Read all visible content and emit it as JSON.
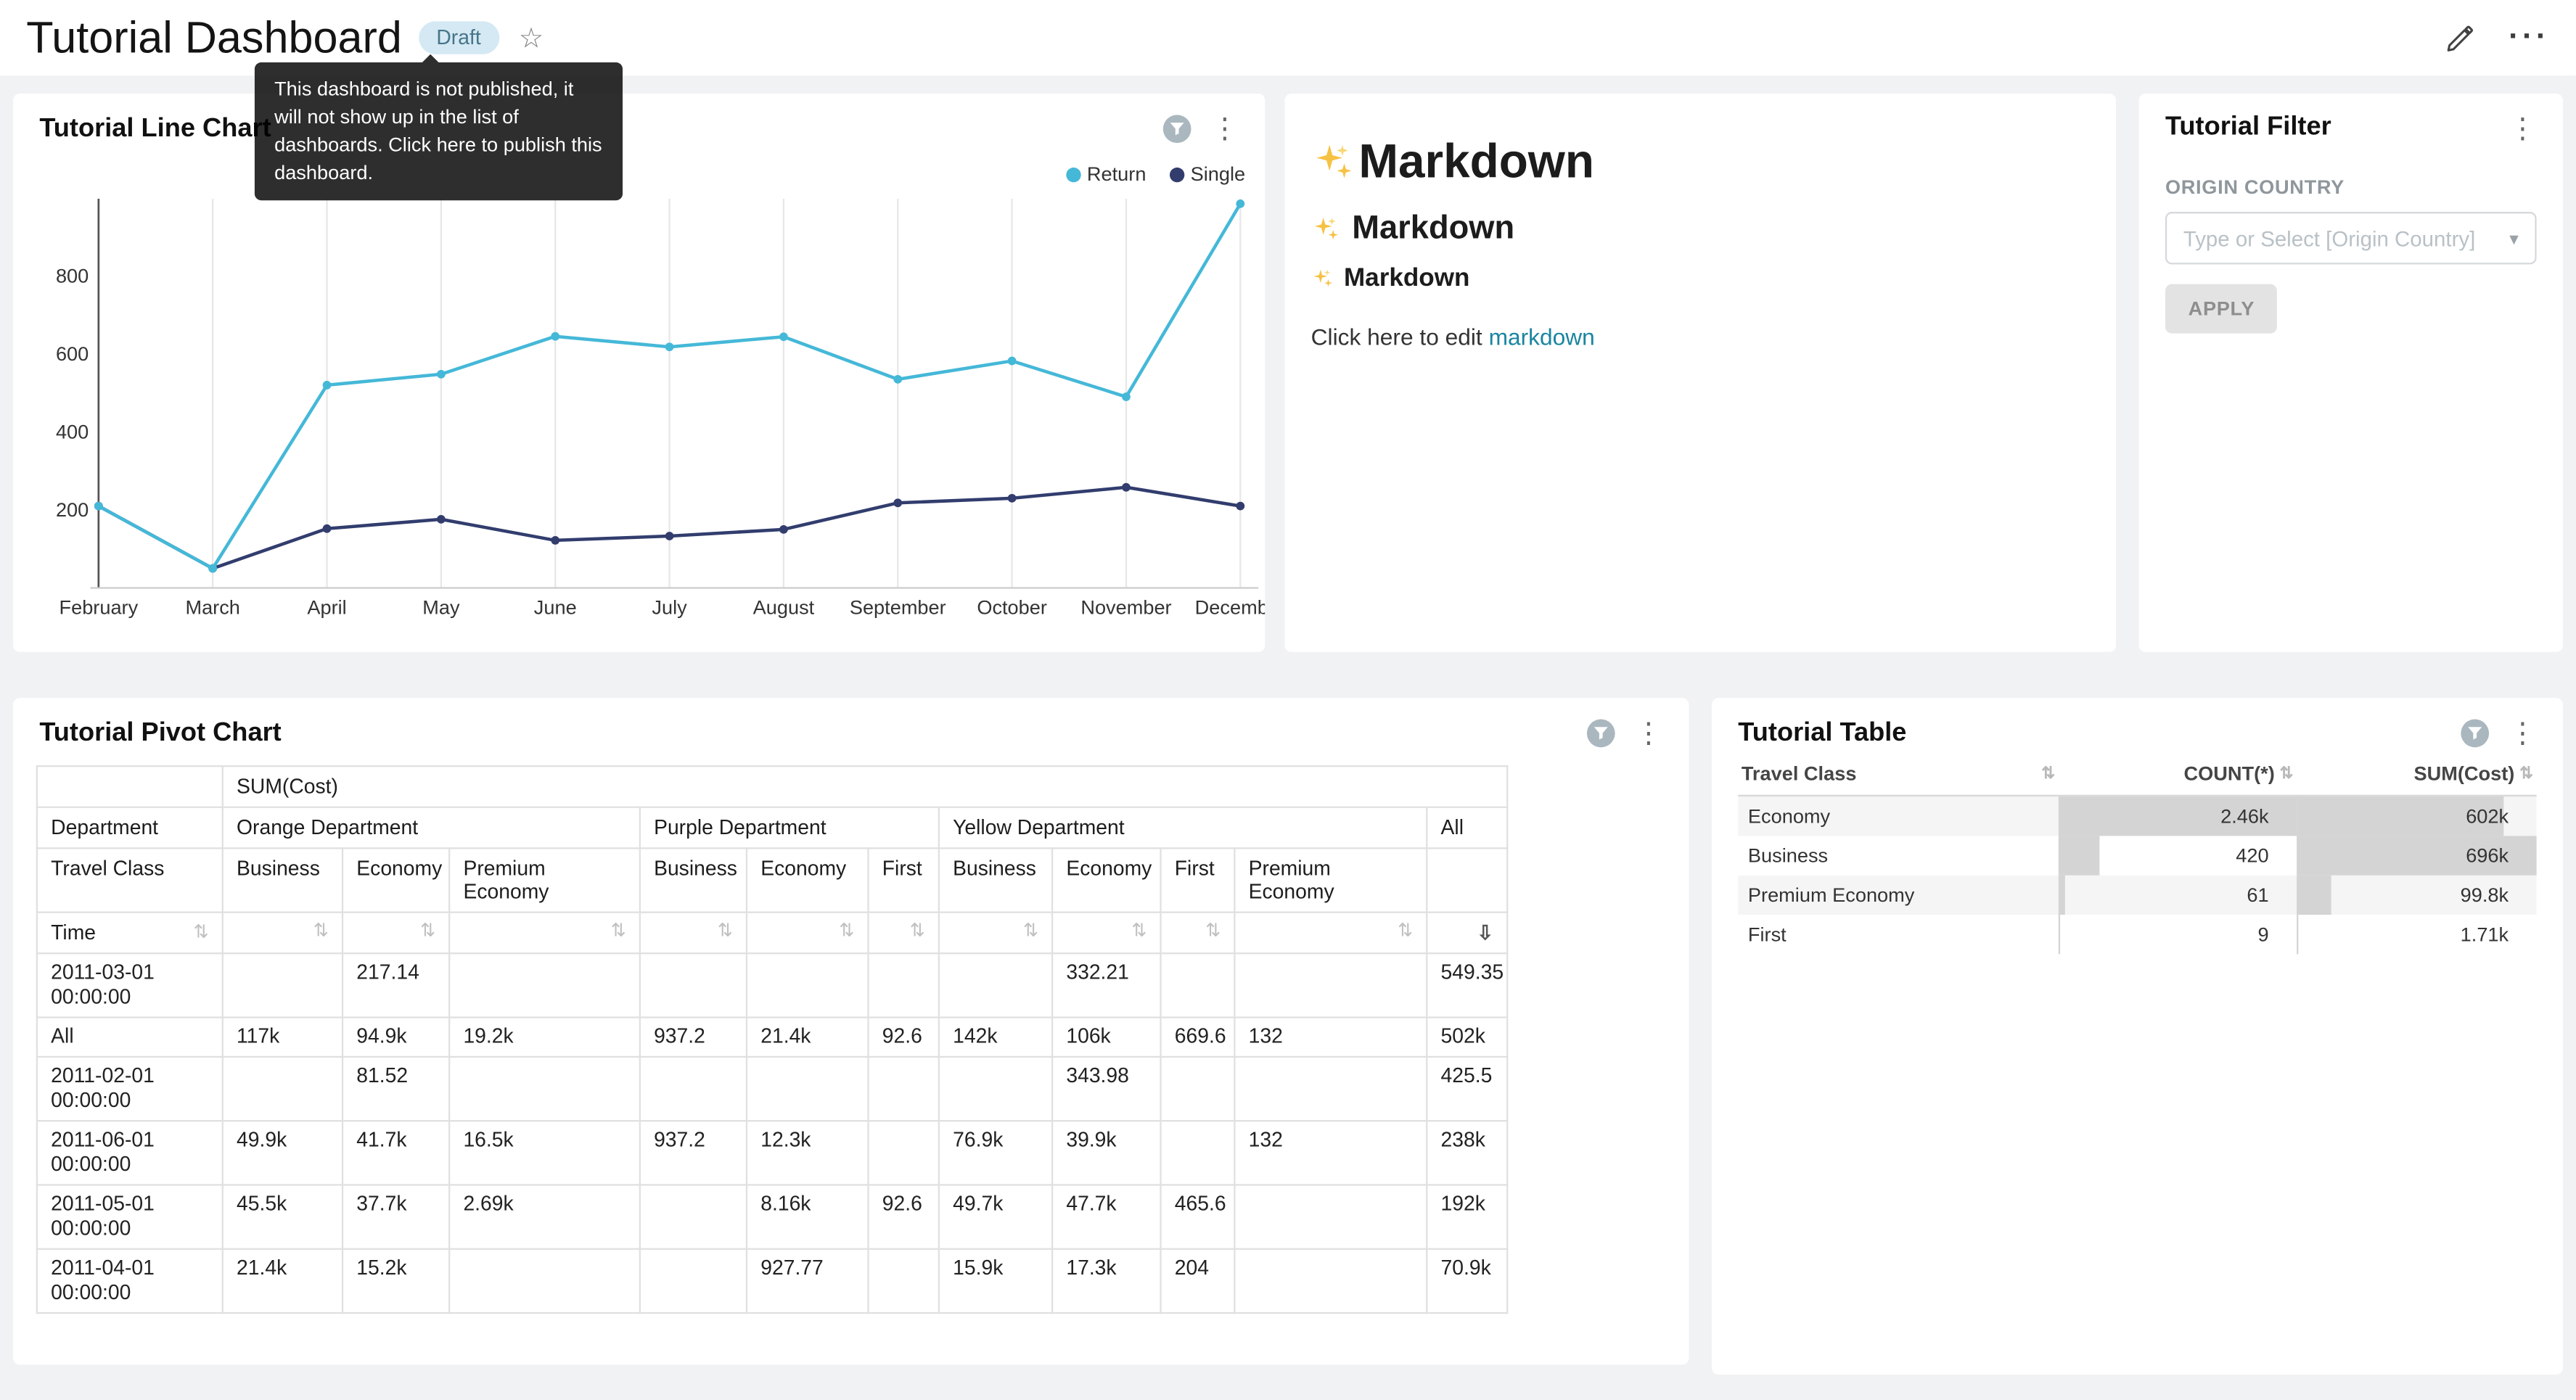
{
  "header": {
    "title": "Tutorial Dashboard",
    "badge": "Draft",
    "tooltip": {
      "text": "This dashboard is not published, it will not show up in the list of dashboards. Click here to publish this dashboard."
    }
  },
  "colors": {
    "link": "#1985a0",
    "badge_bg": "#d4e9f3",
    "bar_fill": "#d4d4d4",
    "series_return": "#45b8d8",
    "series_single": "#323d6e"
  },
  "line_chart_card": {
    "title": "Tutorial Line Chart"
  },
  "markdown_card": {
    "icon": "sparkles",
    "heading_large": "Markdown",
    "heading_medium": "Markdown",
    "heading_small": "Markdown",
    "footer_prefix": "Click here to edit ",
    "footer_link": "markdown"
  },
  "filter_card": {
    "title": "Tutorial Filter",
    "field_label": "ORIGIN COUNTRY",
    "select_placeholder": "Type or Select [Origin Country]",
    "apply_label": "APPLY"
  },
  "pivot_card": {
    "title": "Tutorial Pivot Chart"
  },
  "table_card": {
    "title": "Tutorial Table"
  },
  "chart_data": [
    {
      "id": "line",
      "type": "line",
      "title": "Tutorial Line Chart",
      "x": [
        "February",
        "March",
        "April",
        "May",
        "June",
        "July",
        "August",
        "September",
        "October",
        "November",
        "December"
      ],
      "yticks": [
        200,
        400,
        600,
        800
      ],
      "ylim": [
        0,
        1000
      ],
      "grid": "vertical",
      "legend_position": "top-right",
      "series": [
        {
          "name": "Return",
          "color": "#45b8d8",
          "values": [
            210,
            50,
            520,
            548,
            645,
            618,
            644,
            535,
            582,
            490,
            985
          ]
        },
        {
          "name": "Single",
          "color": "#323d6e",
          "values": [
            210,
            50,
            152,
            176,
            122,
            133,
            150,
            218,
            230,
            258,
            210
          ]
        }
      ]
    },
    {
      "id": "pivot",
      "type": "table",
      "title": "Tutorial Pivot Chart",
      "metric_label": "SUM(Cost)",
      "corner_label": "Department",
      "row_dimension_label": "Travel Class",
      "time_label": "Time",
      "sorted_column": "All",
      "sort_direction": "desc",
      "column_groups": [
        {
          "label": "Orange Department",
          "columns": [
            "Business",
            "Economy",
            "Premium Economy"
          ]
        },
        {
          "label": "Purple Department",
          "columns": [
            "Business",
            "Economy",
            "First"
          ]
        },
        {
          "label": "Yellow Department",
          "columns": [
            "Business",
            "Economy",
            "First",
            "Premium Economy"
          ]
        },
        {
          "label": "All",
          "columns": [
            ""
          ]
        }
      ],
      "rows": [
        {
          "label": "2011-03-01 00:00:00",
          "values": [
            "",
            "217.14",
            "",
            "",
            "",
            "",
            "",
            "332.21",
            "",
            "",
            "549.35"
          ]
        },
        {
          "label": "All",
          "values": [
            "117k",
            "94.9k",
            "19.2k",
            "937.2",
            "21.4k",
            "92.6",
            "142k",
            "106k",
            "669.6",
            "132",
            "502k"
          ]
        },
        {
          "label": "2011-02-01 00:00:00",
          "values": [
            "",
            "81.52",
            "",
            "",
            "",
            "",
            "",
            "343.98",
            "",
            "",
            "425.5"
          ]
        },
        {
          "label": "2011-06-01 00:00:00",
          "values": [
            "49.9k",
            "41.7k",
            "16.5k",
            "937.2",
            "12.3k",
            "",
            "76.9k",
            "39.9k",
            "",
            "132",
            "238k"
          ]
        },
        {
          "label": "2011-05-01 00:00:00",
          "values": [
            "45.5k",
            "37.7k",
            "2.69k",
            "",
            "8.16k",
            "92.6",
            "49.7k",
            "47.7k",
            "465.6",
            "",
            "192k"
          ]
        },
        {
          "label": "2011-04-01 00:00:00",
          "values": [
            "21.4k",
            "15.2k",
            "",
            "",
            "927.77",
            "",
            "15.9k",
            "17.3k",
            "204",
            "",
            "70.9k"
          ]
        }
      ]
    },
    {
      "id": "table",
      "type": "table",
      "title": "Tutorial Table",
      "bar_color": "#d4d4d4",
      "columns": [
        "Travel Class",
        "COUNT(*)",
        "SUM(Cost)"
      ],
      "rows": [
        {
          "travel_class": "Economy",
          "count": "2.46k",
          "count_bar_pct": 100,
          "sum": "602k",
          "sum_bar_pct": 86.5
        },
        {
          "travel_class": "Business",
          "count": "420",
          "count_bar_pct": 17.1,
          "sum": "696k",
          "sum_bar_pct": 100
        },
        {
          "travel_class": "Premium Economy",
          "count": "61",
          "count_bar_pct": 2.5,
          "sum": "99.8k",
          "sum_bar_pct": 14.3
        },
        {
          "travel_class": "First",
          "count": "9",
          "count_bar_pct": 0.4,
          "sum": "1.71k",
          "sum_bar_pct": 0.25
        }
      ]
    }
  ]
}
